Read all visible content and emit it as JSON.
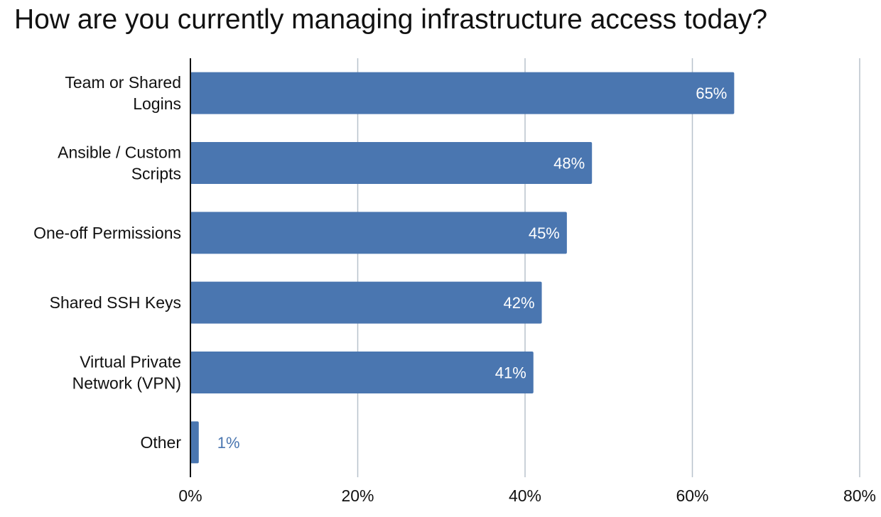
{
  "chart_data": {
    "type": "bar",
    "orientation": "horizontal",
    "title": "How are you currently managing infrastructure access today?",
    "categories": [
      [
        "Team or Shared",
        "Logins"
      ],
      [
        "Ansible / Custom",
        "Scripts"
      ],
      [
        "One-off Permissions"
      ],
      [
        "Shared SSH Keys"
      ],
      [
        "Virtual Private",
        "Network (VPN)"
      ],
      [
        "Other"
      ]
    ],
    "values": [
      65,
      48,
      45,
      42,
      41,
      1
    ],
    "value_labels": [
      "65%",
      "48%",
      "45%",
      "42%",
      "41%",
      "1%"
    ],
    "xlim": [
      0,
      80
    ],
    "x_ticks": [
      0,
      20,
      40,
      60,
      80
    ],
    "x_tick_labels": [
      "0%",
      "20%",
      "40%",
      "60%",
      "80%"
    ],
    "grid": "vertical",
    "colors": {
      "bar": "#4a76b0",
      "label_inside": "#ffffff",
      "label_outside": "#4a76b0",
      "grid": "#b8c2cc",
      "axis": "#111111"
    }
  }
}
